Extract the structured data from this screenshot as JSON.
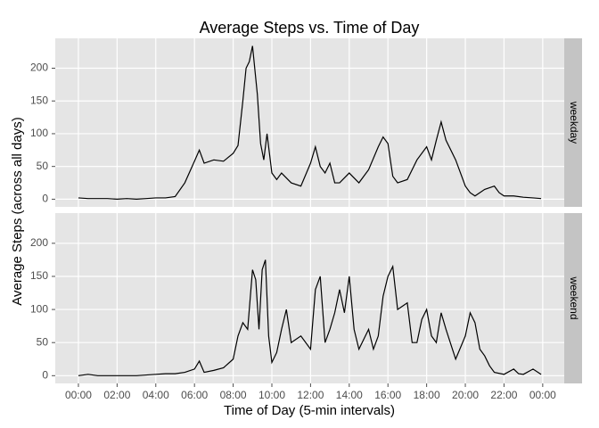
{
  "chart_data": {
    "type": "line",
    "title": "Average Steps vs. Time of Day",
    "xlabel": "Time of Day (5-min intervals)",
    "ylabel": "Average Steps (across all days)",
    "color": "#000000",
    "grid": true,
    "xlim": [
      -71.75,
      1506.75
    ],
    "xticks": [
      {
        "value": 0,
        "label": "00:00"
      },
      {
        "value": 120,
        "label": "02:00"
      },
      {
        "value": 240,
        "label": "04:00"
      },
      {
        "value": 360,
        "label": "06:00"
      },
      {
        "value": 480,
        "label": "08:00"
      },
      {
        "value": 600,
        "label": "10:00"
      },
      {
        "value": 720,
        "label": "12:00"
      },
      {
        "value": 840,
        "label": "14:00"
      },
      {
        "value": 960,
        "label": "16:00"
      },
      {
        "value": 1080,
        "label": "18:00"
      },
      {
        "value": 1200,
        "label": "20:00"
      },
      {
        "value": 1320,
        "label": "22:00"
      },
      {
        "value": 1440,
        "label": "00:00"
      }
    ],
    "ylim": [
      -11.7,
      245.6
    ],
    "yticks": [
      0,
      50,
      100,
      150,
      200
    ],
    "panels": [
      {
        "label": "weekday",
        "x": [
          0,
          30,
          60,
          90,
          120,
          150,
          180,
          210,
          240,
          270,
          300,
          330,
          360,
          375,
          390,
          420,
          450,
          480,
          495,
          510,
          520,
          530,
          540,
          555,
          565,
          575,
          585,
          600,
          615,
          630,
          660,
          690,
          720,
          735,
          750,
          765,
          780,
          795,
          810,
          840,
          870,
          900,
          930,
          945,
          960,
          975,
          990,
          1020,
          1050,
          1080,
          1095,
          1110,
          1125,
          1140,
          1170,
          1200,
          1215,
          1230,
          1260,
          1290,
          1305,
          1320,
          1350,
          1380,
          1410,
          1435
        ],
        "values": [
          2,
          1,
          1,
          1,
          0,
          1,
          0,
          1,
          2,
          2,
          4,
          25,
          58,
          75,
          55,
          60,
          58,
          70,
          82,
          150,
          200,
          210,
          234,
          160,
          85,
          60,
          100,
          40,
          30,
          40,
          25,
          20,
          55,
          80,
          50,
          40,
          55,
          25,
          25,
          40,
          25,
          45,
          80,
          95,
          85,
          35,
          25,
          30,
          60,
          80,
          60,
          90,
          118,
          90,
          60,
          20,
          10,
          5,
          15,
          20,
          10,
          5,
          5,
          3,
          2,
          1
        ]
      },
      {
        "label": "weekend",
        "x": [
          0,
          30,
          60,
          120,
          180,
          240,
          270,
          300,
          330,
          360,
          375,
          390,
          420,
          450,
          480,
          495,
          510,
          525,
          540,
          550,
          560,
          570,
          580,
          590,
          600,
          615,
          630,
          645,
          660,
          690,
          720,
          735,
          750,
          765,
          780,
          795,
          810,
          825,
          840,
          855,
          870,
          900,
          915,
          930,
          945,
          960,
          975,
          990,
          1005,
          1020,
          1035,
          1050,
          1065,
          1080,
          1095,
          1110,
          1125,
          1140,
          1170,
          1200,
          1215,
          1230,
          1245,
          1260,
          1275,
          1290,
          1320,
          1350,
          1365,
          1380,
          1410,
          1435
        ],
        "values": [
          0,
          2,
          0,
          0,
          0,
          2,
          3,
          3,
          5,
          10,
          22,
          5,
          8,
          12,
          25,
          60,
          80,
          70,
          160,
          145,
          70,
          160,
          175,
          60,
          20,
          35,
          70,
          100,
          50,
          60,
          40,
          130,
          150,
          50,
          70,
          95,
          130,
          95,
          150,
          70,
          40,
          70,
          40,
          60,
          120,
          150,
          165,
          100,
          105,
          110,
          50,
          50,
          85,
          100,
          60,
          50,
          95,
          70,
          25,
          60,
          95,
          80,
          40,
          30,
          15,
          5,
          2,
          10,
          3,
          2,
          10,
          2
        ]
      }
    ]
  }
}
